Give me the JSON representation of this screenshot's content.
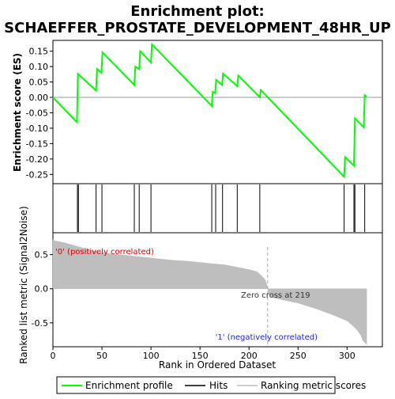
{
  "chart_data": {
    "type": "line",
    "title": "Enrichment plot:",
    "subtitle": "SCHAEFFER_PROSTATE_DEVELOPMENT_48HR_UP",
    "xlabel": "Rank in Ordered Dataset",
    "xlim": [
      0,
      336
    ],
    "xticks": [
      0,
      50,
      100,
      150,
      200,
      250,
      300
    ],
    "es_panel": {
      "ylabel": "Enrichment score (ES)",
      "ylim": [
        -0.28,
        0.185
      ],
      "yticks": [
        0.15,
        0.1,
        0.05,
        0.0,
        -0.05,
        -0.1,
        -0.15,
        -0.2,
        -0.25
      ],
      "ytick_labels": [
        "0.15",
        "0.10",
        "0.05",
        "0.00",
        "-0.05",
        "-0.10",
        "-0.15",
        "-0.20",
        "-0.25"
      ],
      "zero_line": 0.0,
      "curve_color": "#00ff00",
      "points": [
        [
          0,
          0.0
        ],
        [
          24.5,
          -0.081
        ],
        [
          25.5,
          0.076
        ],
        [
          44,
          0.022
        ],
        [
          45,
          0.092
        ],
        [
          49.5,
          0.08
        ],
        [
          50.5,
          0.146
        ],
        [
          83,
          0.04
        ],
        [
          84,
          0.1
        ],
        [
          88,
          0.092
        ],
        [
          89,
          0.15
        ],
        [
          100,
          0.113
        ],
        [
          101,
          0.172
        ],
        [
          162,
          -0.028
        ],
        [
          163,
          0.018
        ],
        [
          165.5,
          0.014
        ],
        [
          166.5,
          0.057
        ],
        [
          172.5,
          0.04
        ],
        [
          173.5,
          0.077
        ],
        [
          188,
          0.036
        ],
        [
          189,
          0.071
        ],
        [
          211,
          0.0
        ],
        [
          212,
          0.024
        ],
        [
          297,
          -0.258
        ],
        [
          298,
          -0.194
        ],
        [
          307,
          -0.222
        ],
        [
          308,
          -0.068
        ],
        [
          317,
          -0.097
        ],
        [
          318,
          0.007
        ],
        [
          320,
          0.002
        ]
      ]
    },
    "hits_panel": {
      "hit_positions": [
        25,
        26,
        44,
        50,
        83,
        88,
        100,
        162,
        166,
        173,
        188,
        211,
        297,
        307,
        308,
        318
      ]
    },
    "heat_bar": {
      "segments": [
        {
          "start": 0,
          "end": 11,
          "color": "#cc0000"
        },
        {
          "start": 11,
          "end": 40,
          "color": "#e83030"
        },
        {
          "start": 40,
          "end": 105,
          "color": "#f45050"
        },
        {
          "start": 105,
          "end": 160,
          "color": "#f87680"
        },
        {
          "start": 160,
          "end": 205,
          "color": "#fa8a94"
        },
        {
          "start": 205,
          "end": 218,
          "color": "#fcc6d4"
        },
        {
          "start": 218,
          "end": 228,
          "color": "#e8e0f8"
        },
        {
          "start": 228,
          "end": 250,
          "color": "#c8c8f8"
        },
        {
          "start": 250,
          "end": 275,
          "color": "#8c8cf4"
        },
        {
          "start": 275,
          "end": 305,
          "color": "#5050e0"
        },
        {
          "start": 305,
          "end": 320,
          "color": "#2020c0"
        }
      ]
    },
    "metric_panel": {
      "ylabel": "Ranked list metric (Signal2Noise)",
      "ylim": [
        -0.85,
        0.82
      ],
      "yticks": [
        0.5,
        0.0,
        -0.5
      ],
      "ytick_labels": [
        "0.5",
        "0.0",
        "-0.5"
      ],
      "zero_cross": 219,
      "zero_cross_label": "Zero cross at 219",
      "pos_label": "'0' (positively correlated)",
      "neg_label": "'1' (negatively correlated)",
      "fill_color": "#bebebe",
      "profile": [
        [
          0,
          0.72
        ],
        [
          2,
          0.7
        ],
        [
          10,
          0.68
        ],
        [
          20,
          0.64
        ],
        [
          30,
          0.6
        ],
        [
          40,
          0.56
        ],
        [
          50,
          0.53
        ],
        [
          60,
          0.51
        ],
        [
          80,
          0.48
        ],
        [
          100,
          0.45
        ],
        [
          120,
          0.42
        ],
        [
          140,
          0.4
        ],
        [
          160,
          0.37
        ],
        [
          175,
          0.35
        ],
        [
          190,
          0.31
        ],
        [
          200,
          0.28
        ],
        [
          208,
          0.25
        ],
        [
          212,
          0.2
        ],
        [
          216,
          0.14
        ],
        [
          218,
          0.07
        ],
        [
          219,
          0.0
        ],
        [
          220,
          -0.06
        ],
        [
          222,
          -0.12
        ],
        [
          230,
          -0.15
        ],
        [
          250,
          -0.21
        ],
        [
          270,
          -0.3
        ],
        [
          285,
          -0.38
        ],
        [
          295,
          -0.44
        ],
        [
          300,
          -0.47
        ],
        [
          305,
          -0.53
        ],
        [
          310,
          -0.6
        ],
        [
          314,
          -0.68
        ],
        [
          316,
          -0.76
        ],
        [
          319,
          -0.8
        ],
        [
          320,
          -0.82
        ]
      ]
    },
    "legend": {
      "placement": "bottom",
      "items": [
        {
          "label": "Enrichment profile",
          "color": "#00ff00",
          "kind": "line"
        },
        {
          "label": "Hits",
          "color": "#000000",
          "kind": "line"
        },
        {
          "label": "Ranking metric scores",
          "color": "#bebebe",
          "kind": "line"
        }
      ]
    }
  }
}
